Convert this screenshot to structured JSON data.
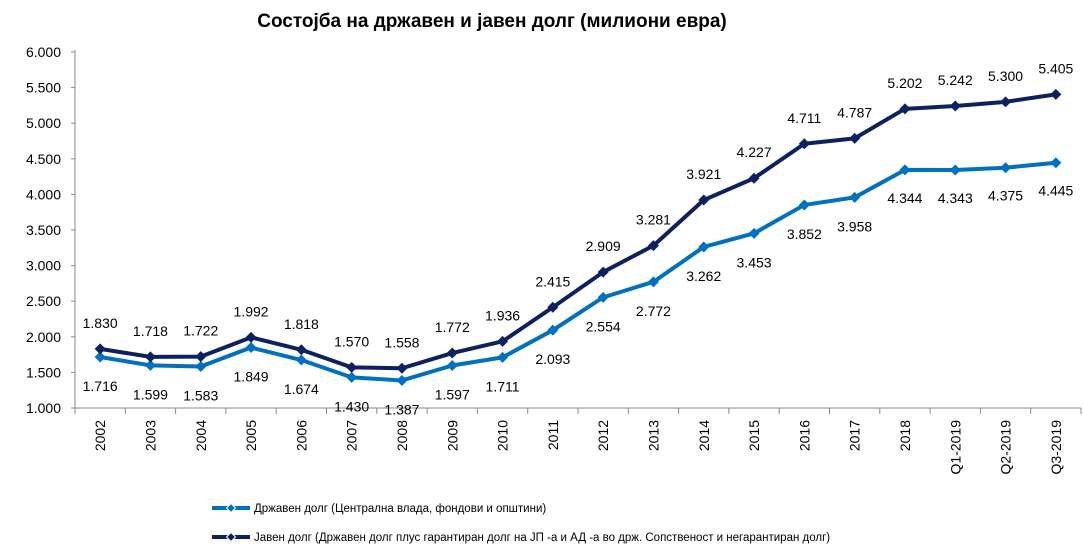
{
  "chart_data": {
    "type": "line",
    "title": "Состојба на државен и јавен долг (милиони евра)",
    "categories": [
      "2002",
      "2003",
      "2004",
      "2005",
      "2006",
      "2007",
      "2008",
      "2009",
      "2010",
      "2011",
      "2012",
      "2013",
      "2014",
      "2015",
      "2016",
      "2017",
      "2018",
      "Q1-2019",
      "Q2-2019",
      "Q3-2019"
    ],
    "series": [
      {
        "name": "Државен долг (Централна влада, фондови и општини)",
        "color": "#0070C0",
        "values": [
          1716,
          1599,
          1583,
          1849,
          1674,
          1430,
          1387,
          1597,
          1711,
          2093,
          2554,
          2772,
          3262,
          3453,
          3852,
          3958,
          4344,
          4343,
          4375,
          4445
        ],
        "labels": [
          "1.716",
          "1.599",
          "1.583",
          "1.849",
          "1.674",
          "1.430",
          "1.387",
          "1.597",
          "1.711",
          "2.093",
          "2.554",
          "2.772",
          "3.262",
          "3.453",
          "3.852",
          "3.958",
          "4.344",
          "4.343",
          "4.375",
          "4.445"
        ]
      },
      {
        "name": "Јавен долг (Државен долг плус гарантиран долг на ЈП -а и АД -а во држ. Сопственост и негарантиран долг)",
        "color": "#0D2160",
        "values": [
          1830,
          1718,
          1722,
          1992,
          1818,
          1570,
          1558,
          1772,
          1936,
          2415,
          2909,
          3281,
          3921,
          4227,
          4711,
          4787,
          5202,
          5242,
          5300,
          5405
        ],
        "labels": [
          "1.830",
          "1.718",
          "1.722",
          "1.992",
          "1.818",
          "1.570",
          "1.558",
          "1.772",
          "1.936",
          "2.415",
          "2.909",
          "3.281",
          "3.921",
          "4.227",
          "4.711",
          "4.787",
          "5.202",
          "5.242",
          "5.300",
          "5.405"
        ]
      }
    ],
    "ylim": [
      1000,
      6000
    ],
    "yticks": [
      1000,
      1500,
      2000,
      2500,
      3000,
      3500,
      4000,
      4500,
      5000,
      5500,
      6000
    ],
    "ytick_labels": [
      "1.000",
      "1.500",
      "2.000",
      "2.500",
      "3.000",
      "3.500",
      "4.000",
      "4.500",
      "5.000",
      "5.500",
      "6.000"
    ],
    "grid": false,
    "legend_position": "bottom"
  }
}
